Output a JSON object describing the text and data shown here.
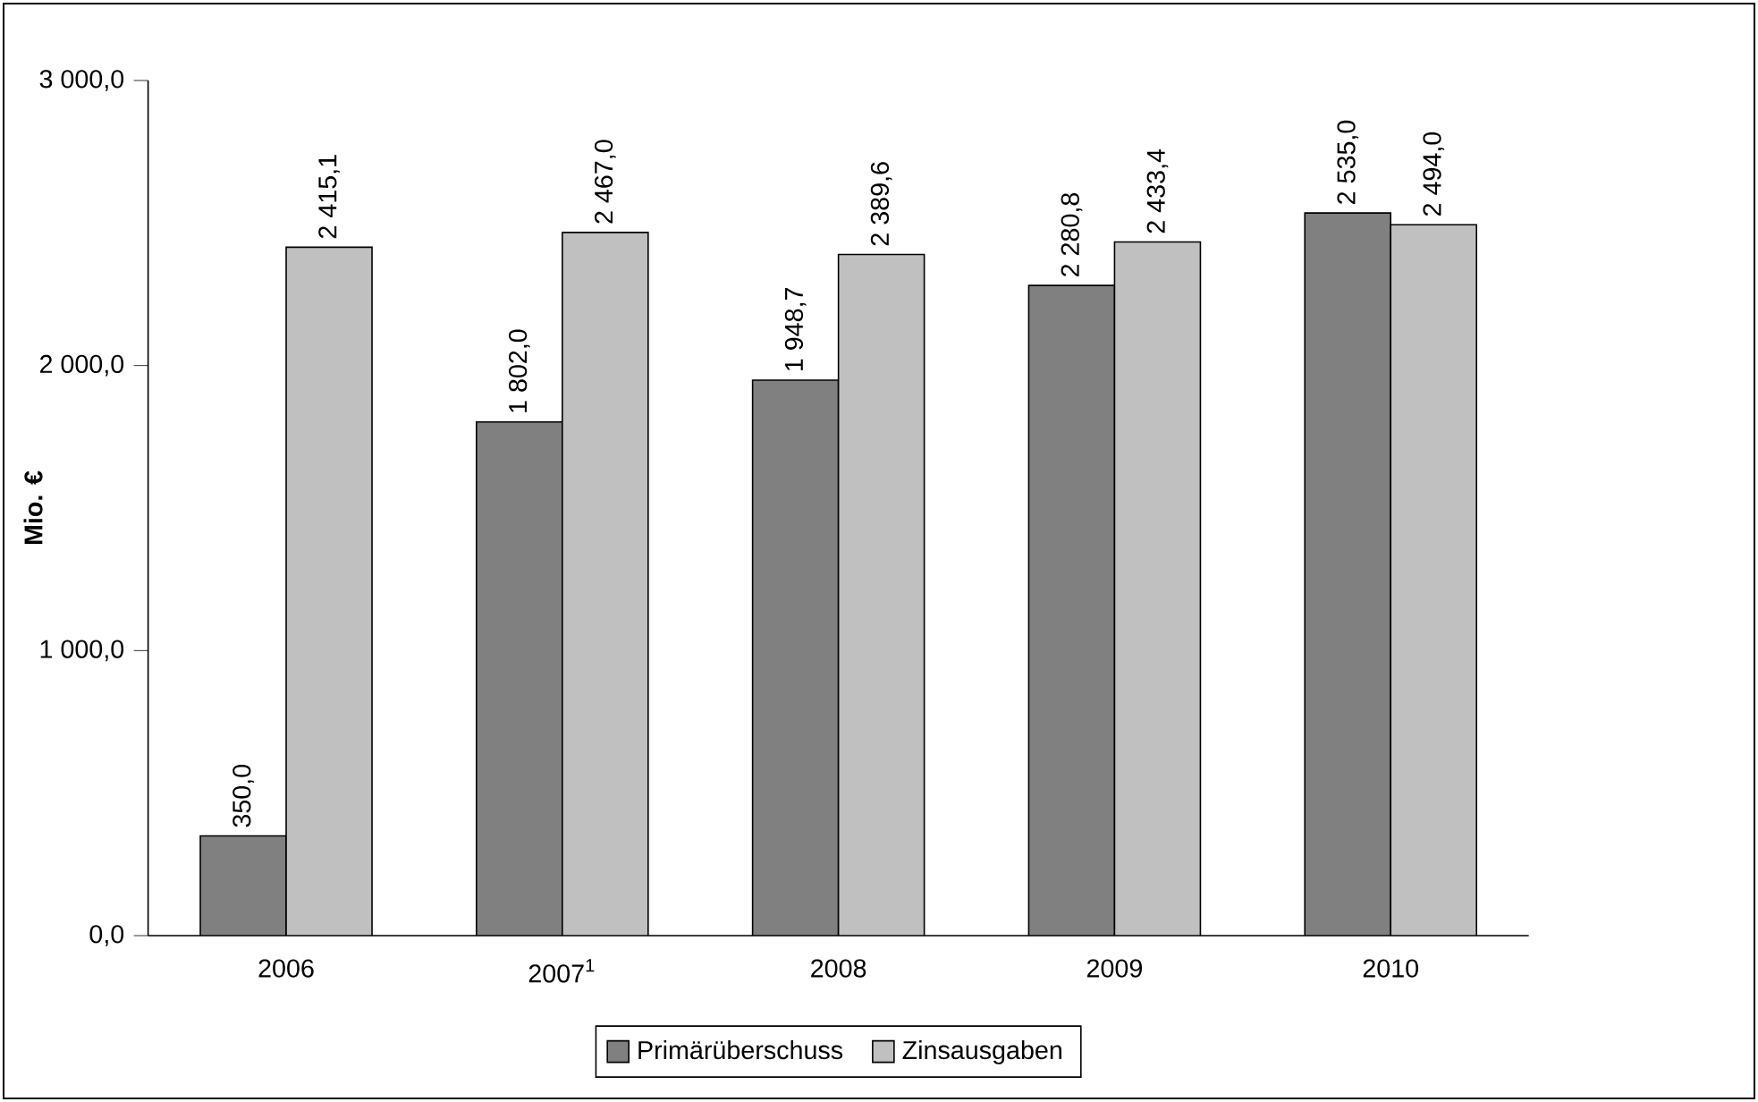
{
  "chart_data": {
    "type": "bar",
    "ylabel": "Mio. €",
    "categories": [
      "2006",
      "2007$^{1}$",
      "2008",
      "2009",
      "2010"
    ],
    "series": [
      {
        "name": "Primärüberschuss",
        "color": "#808080",
        "values": [
          350.0,
          1802.0,
          1948.7,
          2280.8,
          2535.0
        ],
        "value_labels": [
          "350,0",
          "1 802,0",
          "1 948,7",
          "2 280,8",
          "2 535,0"
        ]
      },
      {
        "name": "Zinsausgaben",
        "color": "#c0c0c0",
        "values": [
          2415.1,
          2467.0,
          2389.6,
          2433.4,
          2494.0
        ],
        "value_labels": [
          "2 415,1",
          "2 467,0",
          "2 389,6",
          "2 433,4",
          "2 494,0"
        ]
      }
    ],
    "ylim": [
      0,
      3000
    ],
    "yticks": [
      {
        "value": 0,
        "label": "0,0"
      },
      {
        "value": 1000,
        "label": "1 000,0"
      },
      {
        "value": 2000,
        "label": "2 000,0"
      },
      {
        "value": 3000,
        "label": "3 000,0"
      }
    ],
    "legend": "bottom",
    "grid": false
  }
}
